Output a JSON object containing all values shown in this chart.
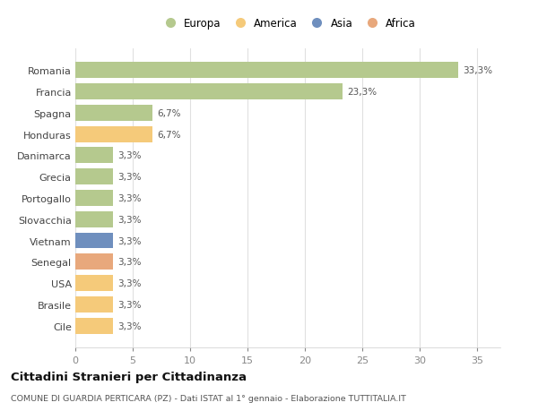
{
  "countries": [
    "Romania",
    "Francia",
    "Spagna",
    "Honduras",
    "Danimarca",
    "Grecia",
    "Portogallo",
    "Slovacchia",
    "Vietnam",
    "Senegal",
    "USA",
    "Brasile",
    "Cile"
  ],
  "values": [
    33.3,
    23.3,
    6.7,
    6.7,
    3.3,
    3.3,
    3.3,
    3.3,
    3.3,
    3.3,
    3.3,
    3.3,
    3.3
  ],
  "labels": [
    "33,3%",
    "23,3%",
    "6,7%",
    "6,7%",
    "3,3%",
    "3,3%",
    "3,3%",
    "3,3%",
    "3,3%",
    "3,3%",
    "3,3%",
    "3,3%",
    "3,3%"
  ],
  "colors": [
    "#b5c98e",
    "#b5c98e",
    "#b5c98e",
    "#f5ca7a",
    "#b5c98e",
    "#b5c98e",
    "#b5c98e",
    "#b5c98e",
    "#6f8fbe",
    "#e8a87c",
    "#f5ca7a",
    "#f5ca7a",
    "#f5ca7a"
  ],
  "legend_labels": [
    "Europa",
    "America",
    "Asia",
    "Africa"
  ],
  "legend_colors": [
    "#b5c98e",
    "#f5ca7a",
    "#6f8fbe",
    "#e8a87c"
  ],
  "title": "Cittadini Stranieri per Cittadinanza",
  "subtitle": "COMUNE DI GUARDIA PERTICARA (PZ) - Dati ISTAT al 1° gennaio - Elaborazione TUTTITALIA.IT",
  "xlim": [
    0,
    37
  ],
  "xticks": [
    0,
    5,
    10,
    15,
    20,
    25,
    30,
    35
  ],
  "background_color": "#ffffff",
  "plot_bg_color": "#ffffff",
  "grid_color": "#e0e0e0"
}
